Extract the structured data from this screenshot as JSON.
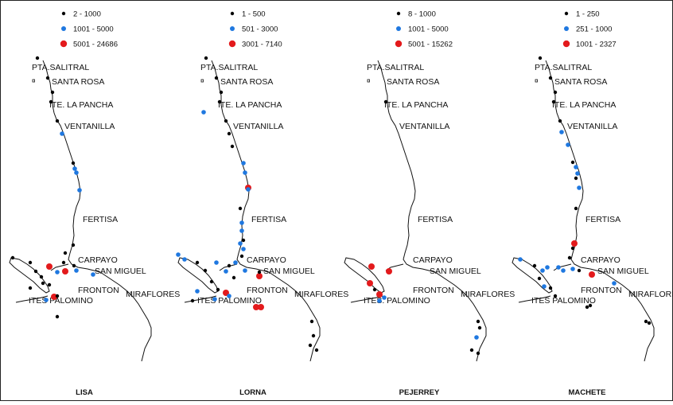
{
  "colors": {
    "small": "#000000",
    "medium": "#1f78e0",
    "large": "#e31a1c",
    "coast": "#111111"
  },
  "panels": [
    {
      "title": "LISA",
      "legend": [
        {
          "range": "2 - 1000",
          "class": "small"
        },
        {
          "range": "1001 - 5000",
          "class": "medium"
        },
        {
          "range": "5001 - 24686",
          "class": "large"
        }
      ],
      "places": [
        "PTA.SALITRAL",
        "SANTA ROSA",
        "ITE. LA PANCHA",
        "VENTANILLA",
        "FERTISA",
        "CARPAYO",
        "SAN MIGUEL",
        "FRONTON",
        "ITES PALOMINO",
        "MIRAFLORES"
      ],
      "points": [
        {
          "x": 47,
          "y": 73,
          "c": "small"
        },
        {
          "x": 60,
          "y": 98,
          "c": "small"
        },
        {
          "x": 66,
          "y": 116,
          "c": "small"
        },
        {
          "x": 64,
          "y": 128,
          "c": "small"
        },
        {
          "x": 72,
          "y": 152,
          "c": "small"
        },
        {
          "x": 78,
          "y": 168,
          "c": "blue"
        },
        {
          "x": 92,
          "y": 205,
          "c": "small"
        },
        {
          "x": 94,
          "y": 212,
          "c": "blue"
        },
        {
          "x": 96,
          "y": 217,
          "c": "blue"
        },
        {
          "x": 100,
          "y": 239,
          "c": "blue"
        },
        {
          "x": 92,
          "y": 308,
          "c": "small"
        },
        {
          "x": 82,
          "y": 318,
          "c": "small"
        },
        {
          "x": 80,
          "y": 330,
          "c": "small"
        },
        {
          "x": 62,
          "y": 335,
          "c": "large"
        },
        {
          "x": 72,
          "y": 342,
          "c": "blue"
        },
        {
          "x": 82,
          "y": 341,
          "c": "large"
        },
        {
          "x": 93,
          "y": 334,
          "c": "small"
        },
        {
          "x": 96,
          "y": 340,
          "c": "blue"
        },
        {
          "x": 117,
          "y": 345,
          "c": "blue"
        },
        {
          "x": 16,
          "y": 324,
          "c": "small"
        },
        {
          "x": 38,
          "y": 330,
          "c": "small"
        },
        {
          "x": 45,
          "y": 341,
          "c": "small"
        },
        {
          "x": 52,
          "y": 348,
          "c": "small"
        },
        {
          "x": 38,
          "y": 362,
          "c": "small"
        },
        {
          "x": 62,
          "y": 358,
          "c": "small"
        },
        {
          "x": 68,
          "y": 373,
          "c": "large"
        },
        {
          "x": 72,
          "y": 372,
          "c": "small"
        },
        {
          "x": 58,
          "y": 377,
          "c": "blue"
        },
        {
          "x": 72,
          "y": 398,
          "c": "small"
        },
        {
          "x": 54,
          "y": 356,
          "c": "small"
        }
      ]
    },
    {
      "title": "LORNA",
      "legend": [
        {
          "range": "1 - 500",
          "class": "small"
        },
        {
          "range": "501 - 3000",
          "class": "medium"
        },
        {
          "range": "3001 - 7140",
          "class": "large"
        }
      ],
      "places": [
        "PTA.SALITRAL",
        "SANTA ROSA",
        "ITE. LA PANCHA",
        "VENTANILLA",
        "FERTISA",
        "CARPAYO",
        "SAN MIGUEL",
        "FRONTON",
        "ITES PALOMINO",
        "MIRAFLORES"
      ],
      "points": [
        {
          "x": 47,
          "y": 73,
          "c": "small"
        },
        {
          "x": 60,
          "y": 98,
          "c": "small"
        },
        {
          "x": 66,
          "y": 116,
          "c": "small"
        },
        {
          "x": 64,
          "y": 128,
          "c": "small"
        },
        {
          "x": 44,
          "y": 141,
          "c": "blue"
        },
        {
          "x": 72,
          "y": 152,
          "c": "small"
        },
        {
          "x": 76,
          "y": 168,
          "c": "small"
        },
        {
          "x": 80,
          "y": 184,
          "c": "small"
        },
        {
          "x": 94,
          "y": 205,
          "c": "blue"
        },
        {
          "x": 96,
          "y": 217,
          "c": "blue"
        },
        {
          "x": 100,
          "y": 236,
          "c": "large"
        },
        {
          "x": 100,
          "y": 238,
          "c": "blue"
        },
        {
          "x": 90,
          "y": 262,
          "c": "small"
        },
        {
          "x": 92,
          "y": 280,
          "c": "blue"
        },
        {
          "x": 92,
          "y": 290,
          "c": "blue"
        },
        {
          "x": 94,
          "y": 302,
          "c": "small"
        },
        {
          "x": 90,
          "y": 306,
          "c": "blue"
        },
        {
          "x": 94,
          "y": 313,
          "c": "blue"
        },
        {
          "x": 92,
          "y": 322,
          "c": "small"
        },
        {
          "x": 84,
          "y": 330,
          "c": "blue"
        },
        {
          "x": 76,
          "y": 334,
          "c": "small"
        },
        {
          "x": 96,
          "y": 340,
          "c": "blue"
        },
        {
          "x": 114,
          "y": 347,
          "c": "large"
        },
        {
          "x": 114,
          "y": 342,
          "c": "small"
        },
        {
          "x": 60,
          "y": 330,
          "c": "blue"
        },
        {
          "x": 72,
          "y": 341,
          "c": "blue"
        },
        {
          "x": 12,
          "y": 320,
          "c": "blue"
        },
        {
          "x": 20,
          "y": 326,
          "c": "blue"
        },
        {
          "x": 36,
          "y": 330,
          "c": "small"
        },
        {
          "x": 46,
          "y": 340,
          "c": "small"
        },
        {
          "x": 54,
          "y": 354,
          "c": "small"
        },
        {
          "x": 36,
          "y": 366,
          "c": "blue"
        },
        {
          "x": 62,
          "y": 364,
          "c": "small"
        },
        {
          "x": 72,
          "y": 368,
          "c": "large"
        },
        {
          "x": 76,
          "y": 372,
          "c": "blue"
        },
        {
          "x": 58,
          "y": 376,
          "c": "blue"
        },
        {
          "x": 110,
          "y": 386,
          "c": "large"
        },
        {
          "x": 116,
          "y": 386,
          "c": "large"
        },
        {
          "x": 180,
          "y": 404,
          "c": "small"
        },
        {
          "x": 182,
          "y": 422,
          "c": "small"
        },
        {
          "x": 186,
          "y": 440,
          "c": "small"
        },
        {
          "x": 178,
          "y": 434,
          "c": "small"
        },
        {
          "x": 30,
          "y": 378,
          "c": "small"
        },
        {
          "x": 82,
          "y": 349,
          "c": "small"
        }
      ]
    },
    {
      "title": "PEJERREY",
      "legend": [
        {
          "range": "8 - 1000",
          "class": "small"
        },
        {
          "range": "1001 - 5000",
          "class": "medium"
        },
        {
          "range": "5001 - 15262",
          "class": "large"
        }
      ],
      "places": [
        "PTA.SALITRAL",
        "SANTA ROSA",
        "ITE. LA PANCHA",
        "VENTANILLA",
        "FERTISA",
        "CARPAYO",
        "SAN MIGUEL",
        "FRONTON",
        "ITES. PALOMINO",
        "MIRAFLORES"
      ],
      "points": [
        {
          "x": 64,
          "y": 128,
          "c": "small"
        },
        {
          "x": 46,
          "y": 335,
          "c": "large"
        },
        {
          "x": 68,
          "y": 341,
          "c": "large"
        },
        {
          "x": 44,
          "y": 356,
          "c": "large"
        },
        {
          "x": 50,
          "y": 364,
          "c": "small"
        },
        {
          "x": 56,
          "y": 370,
          "c": "large"
        },
        {
          "x": 62,
          "y": 374,
          "c": "blue"
        },
        {
          "x": 56,
          "y": 378,
          "c": "blue"
        },
        {
          "x": 180,
          "y": 404,
          "c": "small"
        },
        {
          "x": 182,
          "y": 412,
          "c": "small"
        },
        {
          "x": 178,
          "y": 424,
          "c": "blue"
        },
        {
          "x": 180,
          "y": 444,
          "c": "small"
        },
        {
          "x": 172,
          "y": 440,
          "c": "small"
        }
      ]
    },
    {
      "title": "MACHETE",
      "legend": [
        {
          "range": "1 - 250",
          "class": "small"
        },
        {
          "range": "251 - 1000",
          "class": "medium"
        },
        {
          "range": "1001 - 2327",
          "class": "large"
        }
      ],
      "places": [
        "PTA.SALITRAL",
        "SANTA ROSA",
        "ITE. LA PANCHA",
        "VENTANILLA",
        "FERTISA",
        "CARPAYO",
        "SAN MIGUEL",
        "FRONTON",
        "ITES PALOMINO",
        "MIRAFLORES"
      ],
      "points": [
        {
          "x": 47,
          "y": 73,
          "c": "small"
        },
        {
          "x": 60,
          "y": 98,
          "c": "small"
        },
        {
          "x": 66,
          "y": 116,
          "c": "small"
        },
        {
          "x": 64,
          "y": 128,
          "c": "small"
        },
        {
          "x": 72,
          "y": 152,
          "c": "small"
        },
        {
          "x": 74,
          "y": 166,
          "c": "blue"
        },
        {
          "x": 82,
          "y": 182,
          "c": "blue"
        },
        {
          "x": 88,
          "y": 204,
          "c": "small"
        },
        {
          "x": 92,
          "y": 210,
          "c": "blue"
        },
        {
          "x": 94,
          "y": 218,
          "c": "blue"
        },
        {
          "x": 92,
          "y": 224,
          "c": "small"
        },
        {
          "x": 96,
          "y": 236,
          "c": "blue"
        },
        {
          "x": 92,
          "y": 262,
          "c": "small"
        },
        {
          "x": 90,
          "y": 306,
          "c": "large"
        },
        {
          "x": 88,
          "y": 312,
          "c": "small"
        },
        {
          "x": 84,
          "y": 324,
          "c": "small"
        },
        {
          "x": 70,
          "y": 336,
          "c": "blue"
        },
        {
          "x": 76,
          "y": 340,
          "c": "blue"
        },
        {
          "x": 88,
          "y": 338,
          "c": "blue"
        },
        {
          "x": 96,
          "y": 340,
          "c": "small"
        },
        {
          "x": 112,
          "y": 345,
          "c": "large"
        },
        {
          "x": 140,
          "y": 356,
          "c": "blue"
        },
        {
          "x": 56,
          "y": 336,
          "c": "blue"
        },
        {
          "x": 50,
          "y": 340,
          "c": "blue"
        },
        {
          "x": 22,
          "y": 326,
          "c": "blue"
        },
        {
          "x": 40,
          "y": 334,
          "c": "small"
        },
        {
          "x": 46,
          "y": 350,
          "c": "small"
        },
        {
          "x": 52,
          "y": 360,
          "c": "blue"
        },
        {
          "x": 60,
          "y": 362,
          "c": "small"
        },
        {
          "x": 66,
          "y": 372,
          "c": "small"
        },
        {
          "x": 110,
          "y": 384,
          "c": "small"
        },
        {
          "x": 106,
          "y": 386,
          "c": "small"
        },
        {
          "x": 180,
          "y": 404,
          "c": "small"
        },
        {
          "x": 184,
          "y": 406,
          "c": "small"
        }
      ]
    }
  ]
}
